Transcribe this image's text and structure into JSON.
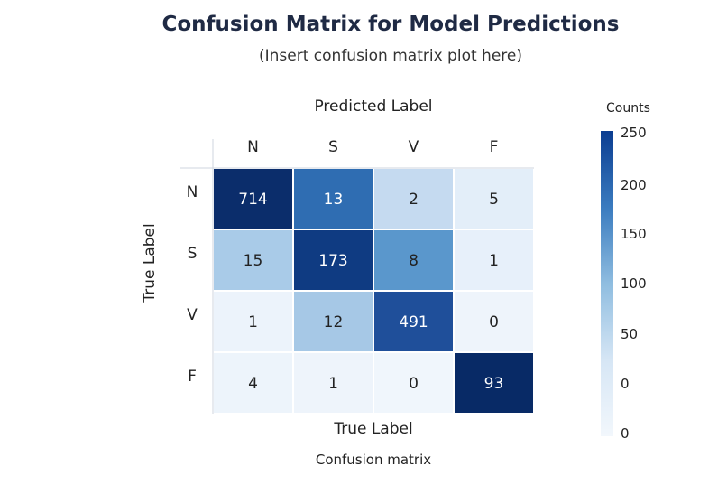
{
  "title": "Confusion Matrix for Model Predictions",
  "subtitle": "(Insert confusion matrix plot here)",
  "bottom_label": "True Label",
  "caption": "Confusion matrix",
  "chart_data": {
    "type": "heatmap",
    "xlabel": "Predicted Label",
    "ylabel": "True Label",
    "x_categories": [
      "N",
      "S",
      "V",
      "F"
    ],
    "y_categories": [
      "N",
      "S",
      "V",
      "F"
    ],
    "values": [
      [
        714,
        13,
        2,
        5
      ],
      [
        15,
        173,
        8,
        1
      ],
      [
        1,
        12,
        491,
        0
      ],
      [
        4,
        1,
        0,
        93
      ]
    ],
    "cell_colors": [
      [
        "#0b2d6b",
        "#2f6db2",
        "#c5daf0",
        "#e3eef9"
      ],
      [
        "#a9cbe8",
        "#0f3b82",
        "#5a97cc",
        "#e7f0fa"
      ],
      [
        "#ecf3fb",
        "#a6c8e6",
        "#1f4f9a",
        "#eef4fb"
      ],
      [
        "#edf4fb",
        "#eef4fb",
        "#f0f6fc",
        "#082a66"
      ]
    ],
    "colorbar": {
      "title": "Counts",
      "ticks": [
        "250",
        "200",
        "150",
        "100",
        "50",
        "0",
        "0"
      ],
      "colors": [
        "#0b3d91",
        "#3a7bbf",
        "#8fbde0",
        "#d6e6f5",
        "#f2f7fc"
      ]
    }
  }
}
